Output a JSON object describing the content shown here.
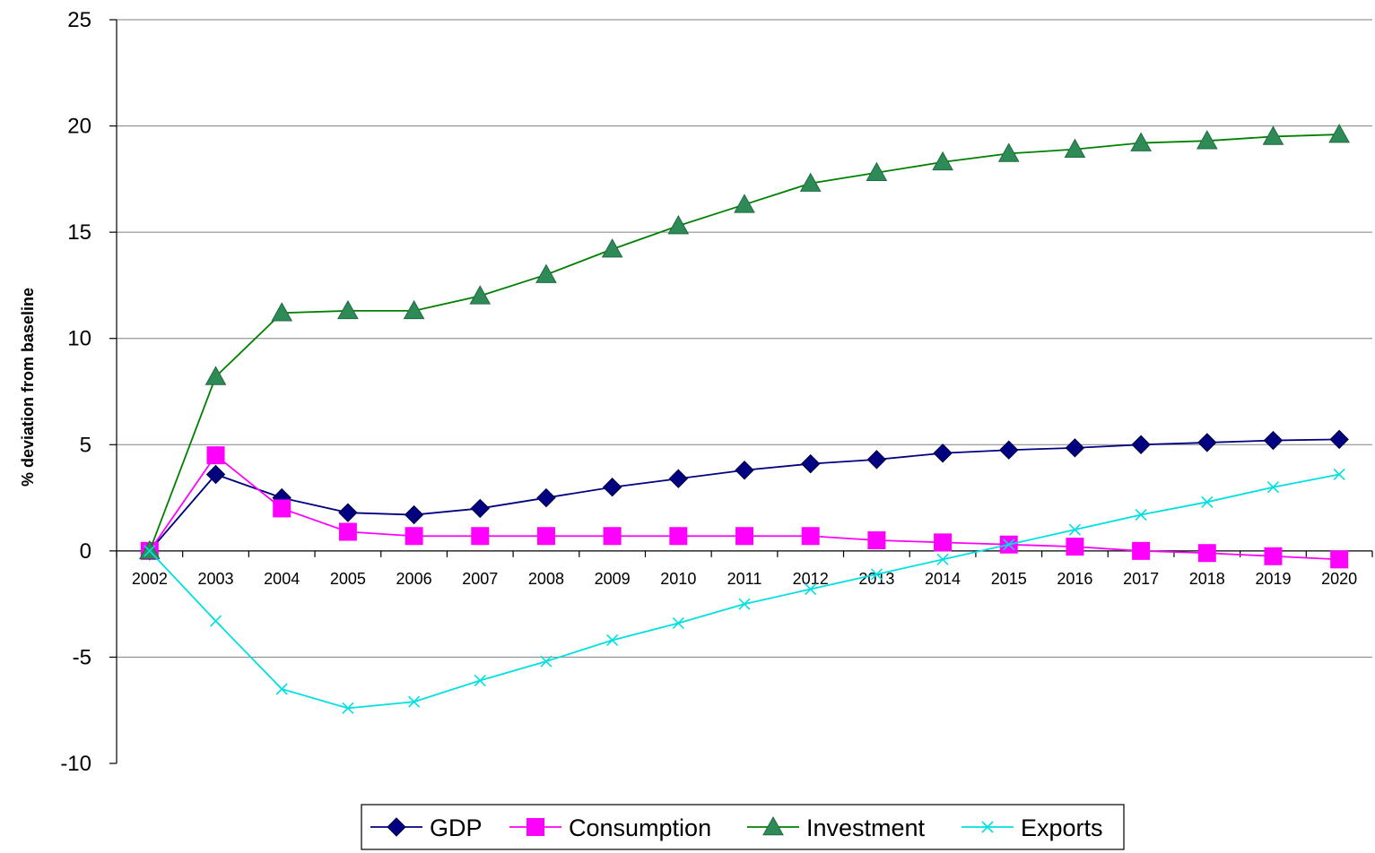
{
  "chart_data": {
    "type": "line",
    "title": "",
    "xlabel": "",
    "ylabel": "% deviation from baseline",
    "ylim": [
      -10,
      25
    ],
    "yticks": [
      -10,
      -5,
      0,
      5,
      10,
      15,
      20,
      25
    ],
    "grid": true,
    "legend_position": "bottom",
    "categories": [
      "2002",
      "2003",
      "2004",
      "2005",
      "2006",
      "2007",
      "2008",
      "2009",
      "2010",
      "2011",
      "2012",
      "2013",
      "2014",
      "2015",
      "2016",
      "2017",
      "2018",
      "2019",
      "2020"
    ],
    "series": [
      {
        "name": "GDP",
        "color": "#000080",
        "marker": "diamond",
        "values": [
          0,
          3.6,
          2.5,
          1.8,
          1.7,
          2.0,
          2.5,
          3.0,
          3.4,
          3.8,
          4.1,
          4.3,
          4.6,
          4.75,
          4.85,
          5.0,
          5.1,
          5.2,
          5.25
        ]
      },
      {
        "name": "Consumption",
        "color": "#FF00FF",
        "marker": "square",
        "values": [
          0,
          4.5,
          2.0,
          0.9,
          0.7,
          0.7,
          0.7,
          0.7,
          0.7,
          0.7,
          0.7,
          0.5,
          0.4,
          0.3,
          0.2,
          0.0,
          -0.1,
          -0.25,
          -0.4
        ]
      },
      {
        "name": "Investment",
        "color": "#008000",
        "marker": "triangle",
        "marker_color": "#2E8B57",
        "values": [
          0,
          8.2,
          11.2,
          11.3,
          11.3,
          12.0,
          13.0,
          14.2,
          15.3,
          16.3,
          17.3,
          17.8,
          18.3,
          18.7,
          18.9,
          19.2,
          19.3,
          19.5,
          19.6
        ]
      },
      {
        "name": "Exports",
        "color": "#00E0E0",
        "marker": "x",
        "values": [
          0,
          -3.3,
          -6.5,
          -7.4,
          -7.1,
          -6.1,
          -5.2,
          -4.2,
          -3.4,
          -2.5,
          -1.8,
          -1.1,
          -0.4,
          0.3,
          1.0,
          1.7,
          2.3,
          3.0,
          3.6
        ]
      }
    ]
  }
}
